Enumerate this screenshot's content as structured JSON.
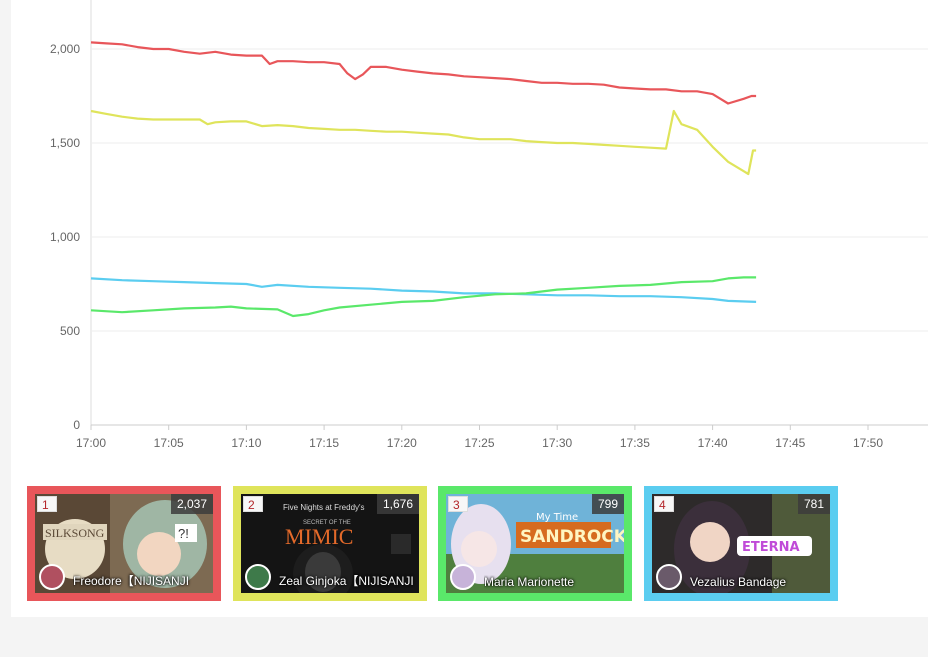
{
  "chart_data": {
    "type": "line",
    "title": "",
    "xlabel": "",
    "ylabel": "",
    "x_ticks": [
      "17:00",
      "17:05",
      "17:10",
      "17:15",
      "17:20",
      "17:25",
      "17:30",
      "17:35",
      "17:40",
      "17:45",
      "17:50"
    ],
    "y_ticks": [
      "0",
      "500",
      "1,000",
      "1,500",
      "2,000"
    ],
    "ylim": [
      0,
      2300
    ],
    "xlim_minutes": [
      0,
      54
    ],
    "grid": true,
    "legend": "none",
    "series": [
      {
        "color": "#e8565a",
        "points": [
          [
            0,
            2035
          ],
          [
            1,
            2030
          ],
          [
            2,
            2025
          ],
          [
            3,
            2010
          ],
          [
            4,
            2000
          ],
          [
            5,
            2000
          ],
          [
            6,
            1985
          ],
          [
            7,
            1975
          ],
          [
            8,
            1985
          ],
          [
            9,
            1970
          ],
          [
            10,
            1965
          ],
          [
            11,
            1965
          ],
          [
            11.5,
            1920
          ],
          [
            12,
            1935
          ],
          [
            13,
            1935
          ],
          [
            14,
            1930
          ],
          [
            15,
            1930
          ],
          [
            16,
            1920
          ],
          [
            16.5,
            1870
          ],
          [
            17,
            1840
          ],
          [
            17.5,
            1865
          ],
          [
            18,
            1905
          ],
          [
            19,
            1905
          ],
          [
            20,
            1890
          ],
          [
            21,
            1880
          ],
          [
            22,
            1870
          ],
          [
            23,
            1865
          ],
          [
            24,
            1855
          ],
          [
            25,
            1850
          ],
          [
            26,
            1845
          ],
          [
            27,
            1840
          ],
          [
            28,
            1830
          ],
          [
            29,
            1820
          ],
          [
            30,
            1820
          ],
          [
            31,
            1815
          ],
          [
            32,
            1815
          ],
          [
            33,
            1810
          ],
          [
            34,
            1795
          ],
          [
            35,
            1790
          ],
          [
            36,
            1785
          ],
          [
            37,
            1785
          ],
          [
            38,
            1775
          ],
          [
            39,
            1775
          ],
          [
            40,
            1760
          ],
          [
            40.5,
            1735
          ],
          [
            41,
            1710
          ],
          [
            42,
            1735
          ],
          [
            42.5,
            1750
          ],
          [
            42.8,
            1750
          ]
        ]
      },
      {
        "color": "#dfe45b",
        "points": [
          [
            0,
            1670
          ],
          [
            1,
            1655
          ],
          [
            2,
            1640
          ],
          [
            3,
            1630
          ],
          [
            4,
            1625
          ],
          [
            5,
            1625
          ],
          [
            6,
            1625
          ],
          [
            7,
            1625
          ],
          [
            7.5,
            1600
          ],
          [
            8,
            1610
          ],
          [
            9,
            1615
          ],
          [
            10,
            1615
          ],
          [
            11,
            1590
          ],
          [
            12,
            1595
          ],
          [
            13,
            1590
          ],
          [
            14,
            1580
          ],
          [
            15,
            1575
          ],
          [
            16,
            1570
          ],
          [
            17,
            1570
          ],
          [
            18,
            1565
          ],
          [
            19,
            1560
          ],
          [
            20,
            1560
          ],
          [
            21,
            1555
          ],
          [
            22,
            1550
          ],
          [
            23,
            1545
          ],
          [
            24,
            1530
          ],
          [
            25,
            1520
          ],
          [
            26,
            1520
          ],
          [
            27,
            1520
          ],
          [
            28,
            1510
          ],
          [
            29,
            1505
          ],
          [
            30,
            1500
          ],
          [
            31,
            1500
          ],
          [
            32,
            1495
          ],
          [
            33,
            1490
          ],
          [
            34,
            1485
          ],
          [
            35,
            1480
          ],
          [
            36,
            1475
          ],
          [
            37,
            1470
          ],
          [
            37.5,
            1670
          ],
          [
            38,
            1600
          ],
          [
            39,
            1570
          ],
          [
            40,
            1480
          ],
          [
            41,
            1400
          ],
          [
            42,
            1350
          ],
          [
            42.3,
            1335
          ],
          [
            42.6,
            1460
          ],
          [
            42.8,
            1460
          ]
        ]
      },
      {
        "color": "#5bcdf0",
        "points": [
          [
            0,
            780
          ],
          [
            2,
            770
          ],
          [
            4,
            765
          ],
          [
            6,
            760
          ],
          [
            8,
            755
          ],
          [
            10,
            750
          ],
          [
            11,
            735
          ],
          [
            12,
            745
          ],
          [
            14,
            735
          ],
          [
            16,
            730
          ],
          [
            18,
            725
          ],
          [
            20,
            715
          ],
          [
            22,
            710
          ],
          [
            24,
            700
          ],
          [
            26,
            700
          ],
          [
            28,
            695
          ],
          [
            30,
            690
          ],
          [
            32,
            690
          ],
          [
            34,
            685
          ],
          [
            36,
            685
          ],
          [
            38,
            680
          ],
          [
            40,
            670
          ],
          [
            41,
            660
          ],
          [
            42.8,
            655
          ]
        ]
      },
      {
        "color": "#5ae86a",
        "points": [
          [
            0,
            610
          ],
          [
            2,
            600
          ],
          [
            4,
            610
          ],
          [
            6,
            620
          ],
          [
            8,
            625
          ],
          [
            9,
            630
          ],
          [
            10,
            620
          ],
          [
            12,
            615
          ],
          [
            13,
            580
          ],
          [
            14,
            590
          ],
          [
            15,
            610
          ],
          [
            16,
            625
          ],
          [
            18,
            640
          ],
          [
            20,
            655
          ],
          [
            22,
            660
          ],
          [
            24,
            680
          ],
          [
            26,
            695
          ],
          [
            28,
            700
          ],
          [
            30,
            720
          ],
          [
            32,
            730
          ],
          [
            34,
            740
          ],
          [
            36,
            745
          ],
          [
            38,
            760
          ],
          [
            40,
            765
          ],
          [
            41,
            780
          ],
          [
            42,
            785
          ],
          [
            42.8,
            785
          ]
        ]
      }
    ]
  },
  "cards": [
    {
      "rank": "1",
      "viewers": "2,037",
      "name": "Freodore【NIJISANJI",
      "border": "#e8565a"
    },
    {
      "rank": "2",
      "viewers": "1,676",
      "name": "Zeal Ginjoka【NIJISANJI",
      "border": "#dfe45b"
    },
    {
      "rank": "3",
      "viewers": "799",
      "name": "Maria Marionette",
      "border": "#5ae86a"
    },
    {
      "rank": "4",
      "viewers": "781",
      "name": "Vezalius Bandage",
      "border": "#5bcdf0"
    }
  ]
}
